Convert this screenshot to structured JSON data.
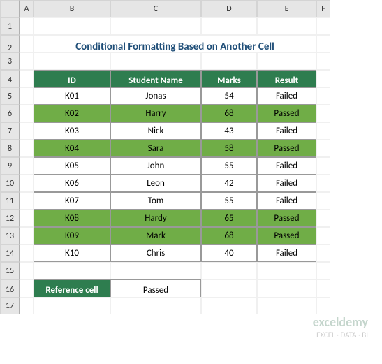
{
  "columns": [
    "A",
    "B",
    "C",
    "D",
    "E",
    "F"
  ],
  "rows": [
    "1",
    "2",
    "3",
    "4",
    "5",
    "6",
    "7",
    "8",
    "9",
    "10",
    "11",
    "12",
    "13",
    "14",
    "15",
    "16",
    "17"
  ],
  "title": "Conditional Formatting Based on Another Cell",
  "headers": {
    "id": "ID",
    "name": "Student Name",
    "marks": "Marks",
    "result": "Result"
  },
  "data": [
    {
      "id": "K01",
      "name": "Jonas",
      "marks": "54",
      "result": "Failed",
      "highlight": false
    },
    {
      "id": "K02",
      "name": "Harry",
      "marks": "68",
      "result": "Passed",
      "highlight": true
    },
    {
      "id": "K03",
      "name": "Nick",
      "marks": "43",
      "result": "Failed",
      "highlight": false
    },
    {
      "id": "K04",
      "name": "Sara",
      "marks": "58",
      "result": "Passed",
      "highlight": true
    },
    {
      "id": "K05",
      "name": "John",
      "marks": "55",
      "result": "Failed",
      "highlight": false
    },
    {
      "id": "K06",
      "name": "Leon",
      "marks": "42",
      "result": "Failed",
      "highlight": false
    },
    {
      "id": "K07",
      "name": "Tom",
      "marks": "55",
      "result": "Failed",
      "highlight": false
    },
    {
      "id": "K08",
      "name": "Hardy",
      "marks": "65",
      "result": "Passed",
      "highlight": true
    },
    {
      "id": "K09",
      "name": "Mark",
      "marks": "68",
      "result": "Passed",
      "highlight": true
    },
    {
      "id": "K10",
      "name": "Chris",
      "marks": "40",
      "result": "Failed",
      "highlight": false
    }
  ],
  "reference": {
    "label": "Reference cell",
    "value": "Passed"
  },
  "colors": {
    "header_bg": "#2e7d4f",
    "highlight_bg": "#70ad47",
    "title_color": "#1f4e78",
    "title_underline": "#5b9bd5"
  },
  "watermark": {
    "brand": "exceldemy",
    "tagline": "EXCEL · DATA · BI"
  }
}
